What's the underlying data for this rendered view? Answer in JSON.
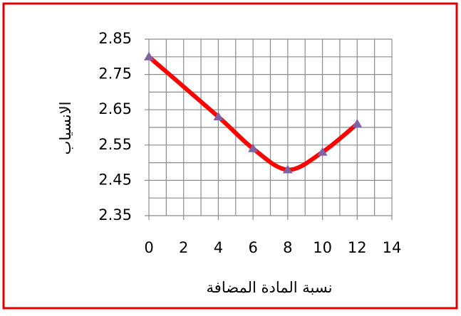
{
  "chart_data": {
    "type": "line",
    "x_label": "نسبة المادة المضافة",
    "y_label": "الانسياب",
    "x": [
      0,
      4,
      6,
      8,
      10,
      12
    ],
    "series": [
      {
        "color": "#ff0000",
        "marker_color": "#8064a2",
        "values": [
          2.8,
          2.63,
          2.54,
          2.48,
          2.53,
          2.61
        ]
      }
    ],
    "xlim": [
      0,
      14
    ],
    "xticks": [
      0,
      2,
      4,
      6,
      8,
      10,
      12,
      14
    ],
    "x_minor_ticks": [
      1,
      3,
      5,
      7,
      9,
      11,
      13
    ],
    "ylim": [
      2.35,
      2.85
    ],
    "yticks": [
      2.35,
      2.45,
      2.55,
      2.65,
      2.75,
      2.85
    ],
    "y_minor_ticks": [
      2.4,
      2.5,
      2.6,
      2.7,
      2.8
    ],
    "grid": true,
    "smooth": true
  }
}
